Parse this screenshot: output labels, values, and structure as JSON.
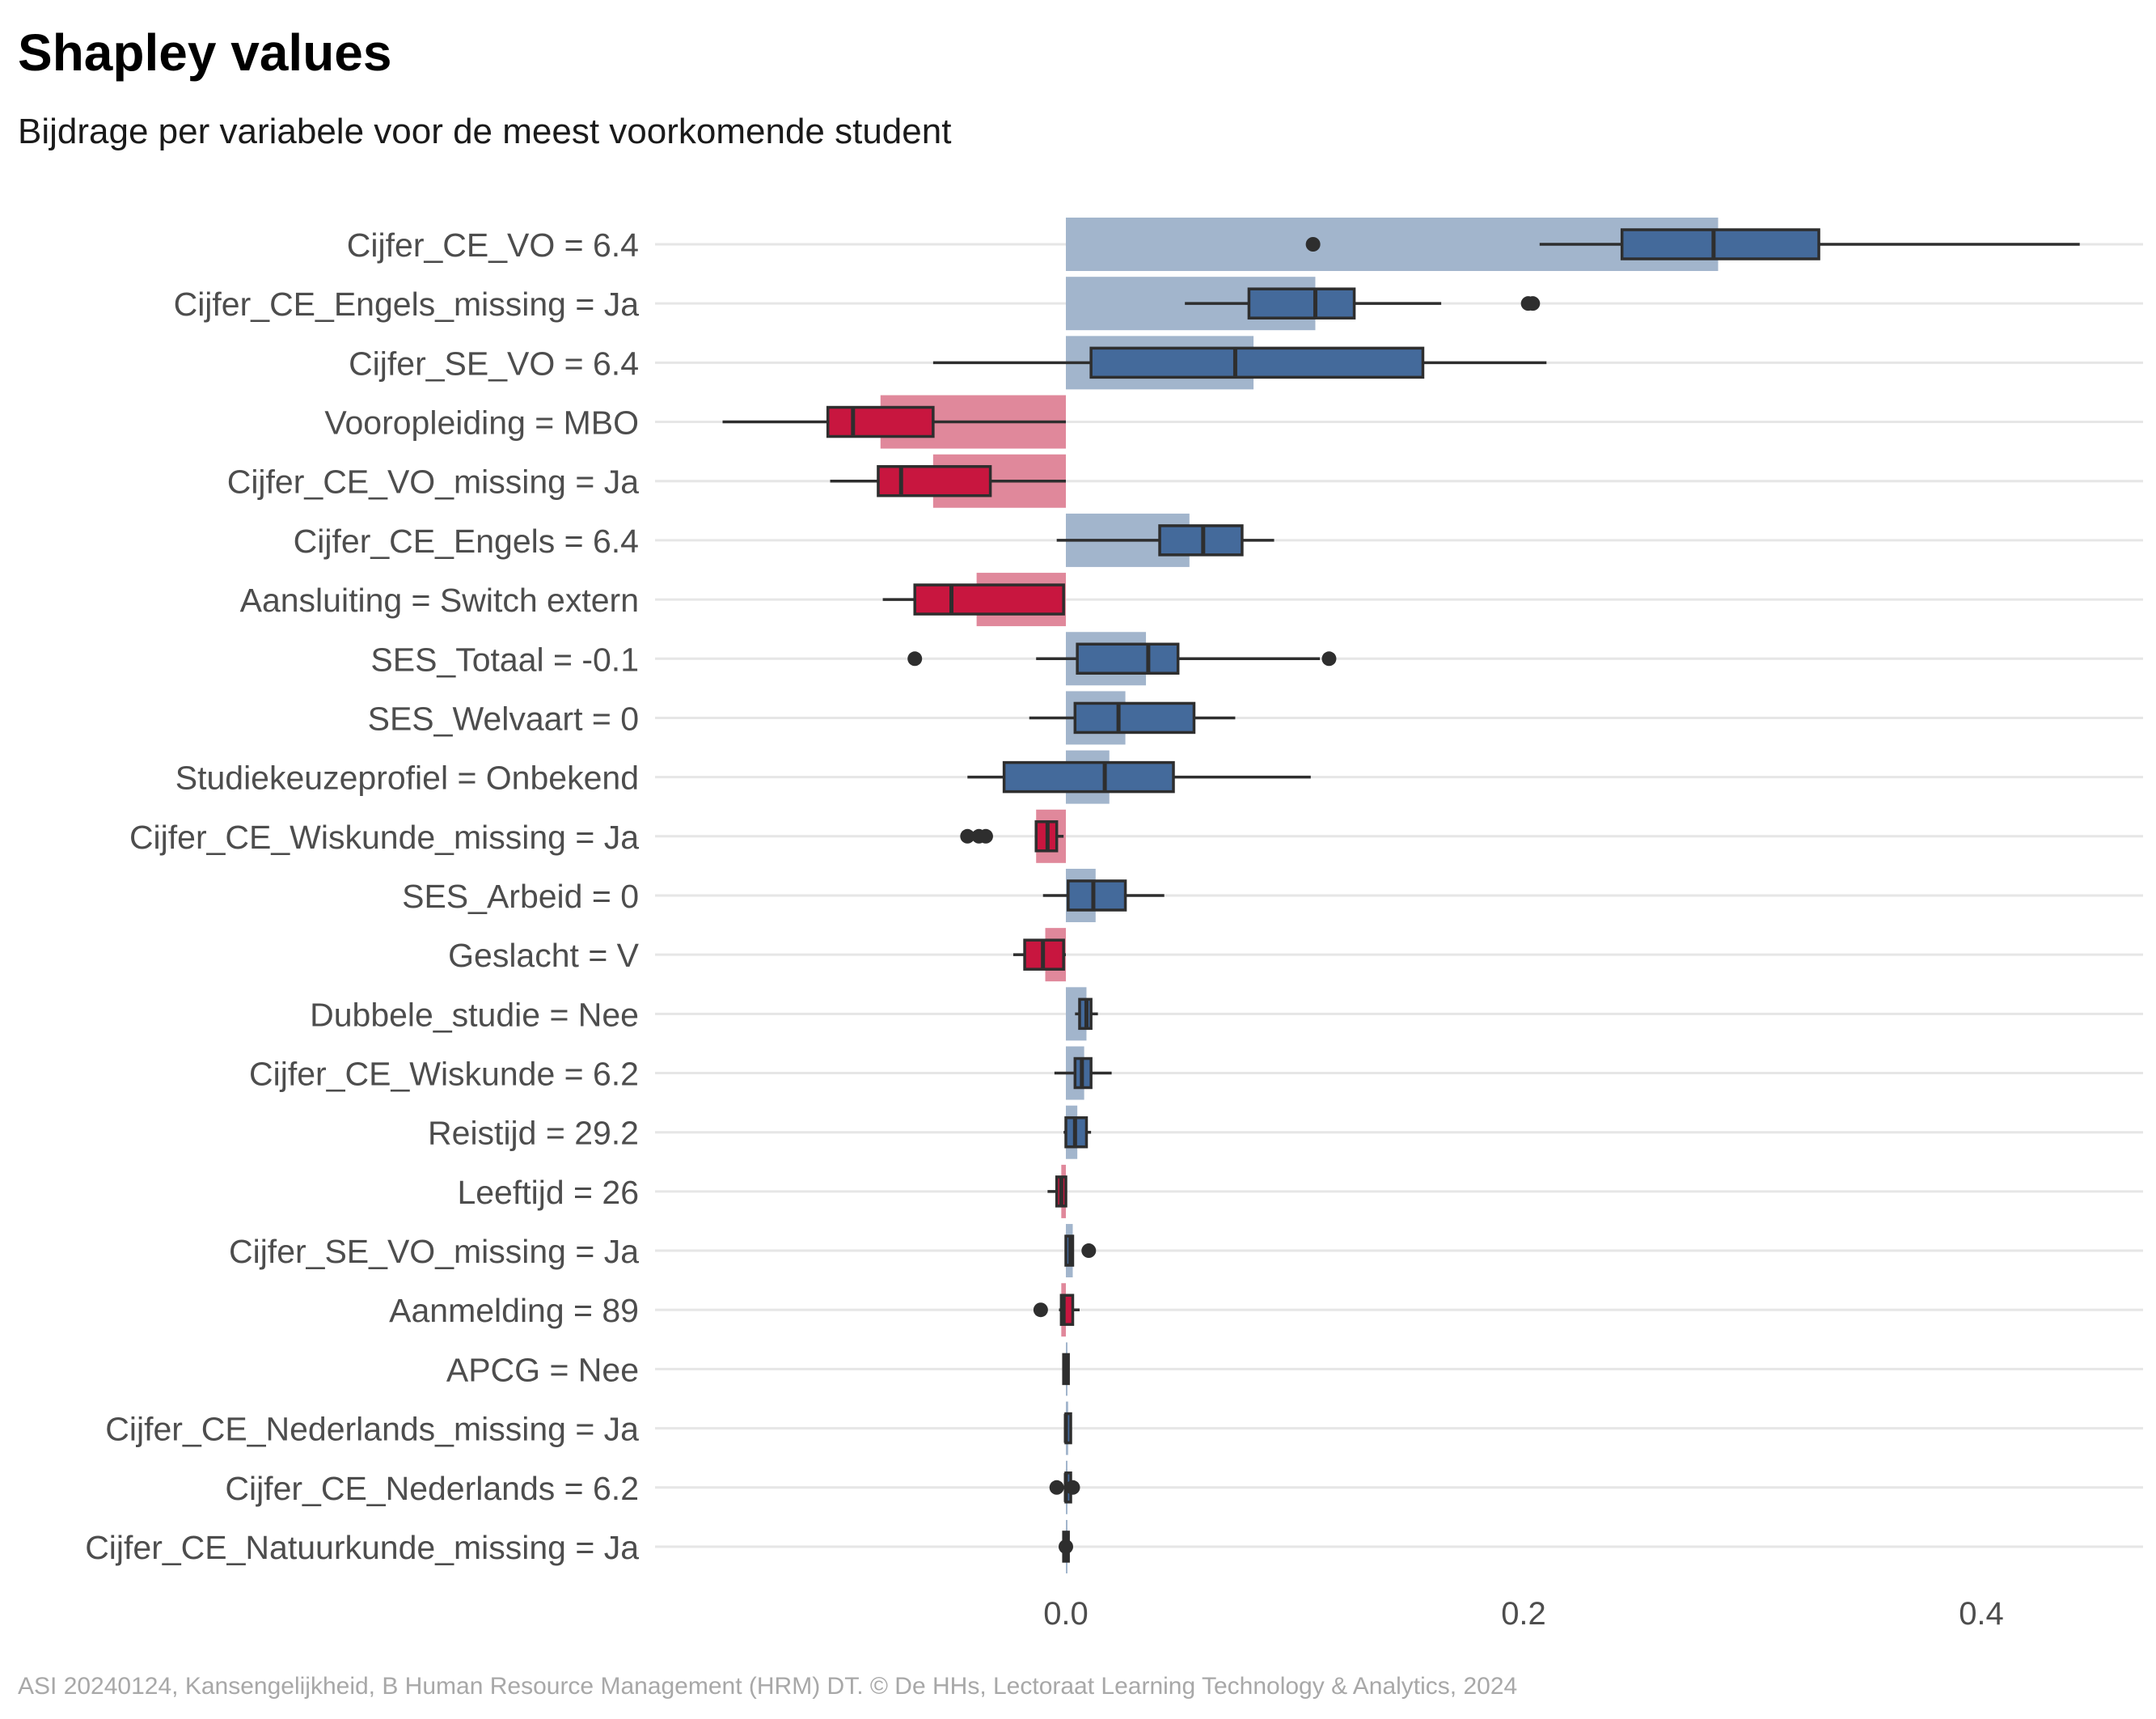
{
  "title": "Shapley values",
  "subtitle": "Bijdrage per variabele voor de meest voorkomende student",
  "caption": "ASI 20240124, Kansengelijkheid, B Human Resource Management (HRM) DT. © De HHs, Lectoraat Learning Technology & Analytics, 2024",
  "colors": {
    "positive_bar": "#a2b5cc",
    "positive_box": "#446a9b",
    "negative_bar": "#e0889b",
    "negative_box": "#c8163f",
    "outline": "#2e2e2e",
    "grid": "#e6e6e6",
    "label": "#4d4d4d"
  },
  "chart_data": {
    "type": "bar",
    "title": "Shapley values",
    "subtitle": "Bijdrage per variabele voor de meest voorkomende student",
    "xlabel": "",
    "ylabel": "",
    "xlim": [
      -0.18,
      0.47
    ],
    "x_ticks": [
      0.0,
      0.2,
      0.4
    ],
    "x_tick_labels": [
      "0.0",
      "0.2",
      "0.4"
    ],
    "grid": "horizontal",
    "series": [
      {
        "values": [
          0.285,
          0.109,
          0.082,
          -0.081,
          -0.058,
          0.054,
          -0.039,
          0.035,
          0.026,
          0.019,
          -0.013,
          0.013,
          -0.009,
          0.009,
          0.008,
          0.005,
          -0.002,
          0.003,
          -0.002,
          0.0,
          0.001,
          0.0,
          0.0
        ]
      }
    ],
    "categories": [
      "Cijfer_CE_VO = 6.4",
      "Cijfer_CE_Engels_missing = Ja",
      "Cijfer_SE_VO = 6.4",
      "Vooropleiding = MBO",
      "Cijfer_CE_VO_missing = Ja",
      "Cijfer_CE_Engels = 6.4",
      "Aansluiting = Switch extern",
      "SES_Totaal = -0.1",
      "SES_Welvaart = 0",
      "Studiekeuzeprofiel = Onbekend",
      "Cijfer_CE_Wiskunde_missing = Ja",
      "SES_Arbeid = 0",
      "Geslacht = V",
      "Dubbele_studie = Nee",
      "Cijfer_CE_Wiskunde = 6.2",
      "Reistijd = 29.2",
      "Leeftijd = 26",
      "Cijfer_SE_VO_missing = Ja",
      "Aanmelding = 89",
      "APCG = Nee",
      "Cijfer_CE_Nederlands_missing = Ja",
      "Cijfer_CE_Nederlands = 6.2",
      "Cijfer_CE_Natuurkunde_missing = Ja"
    ],
    "boxplots": [
      {
        "min": 0.207,
        "q1": 0.243,
        "median": 0.283,
        "q3": 0.329,
        "max": 0.443,
        "outliers": [
          0.108
        ]
      },
      {
        "min": 0.052,
        "q1": 0.08,
        "median": 0.109,
        "q3": 0.126,
        "max": 0.164,
        "outliers": [
          0.202,
          0.204
        ]
      },
      {
        "min": -0.058,
        "q1": 0.011,
        "median": 0.074,
        "q3": 0.156,
        "max": 0.21,
        "outliers": []
      },
      {
        "min": -0.15,
        "q1": -0.104,
        "median": -0.093,
        "q3": -0.058,
        "max": 0.0,
        "outliers": []
      },
      {
        "min": -0.103,
        "q1": -0.082,
        "median": -0.072,
        "q3": -0.033,
        "max": 0.0,
        "outliers": []
      },
      {
        "min": -0.004,
        "q1": 0.041,
        "median": 0.06,
        "q3": 0.077,
        "max": 0.091,
        "outliers": []
      },
      {
        "min": -0.08,
        "q1": -0.066,
        "median": -0.05,
        "q3": -0.001,
        "max": -0.001,
        "outliers": []
      },
      {
        "min": -0.013,
        "q1": 0.005,
        "median": 0.036,
        "q3": 0.049,
        "max": 0.111,
        "outliers": [
          -0.066,
          0.115
        ]
      },
      {
        "min": -0.016,
        "q1": 0.004,
        "median": 0.023,
        "q3": 0.056,
        "max": 0.074,
        "outliers": []
      },
      {
        "min": -0.043,
        "q1": -0.027,
        "median": 0.017,
        "q3": 0.047,
        "max": 0.107,
        "outliers": []
      },
      {
        "min": -0.013,
        "q1": -0.013,
        "median": -0.008,
        "q3": -0.004,
        "max": -0.001,
        "outliers": [
          -0.043,
          -0.038,
          -0.035
        ]
      },
      {
        "min": -0.01,
        "q1": 0.001,
        "median": 0.012,
        "q3": 0.026,
        "max": 0.043,
        "outliers": []
      },
      {
        "min": -0.023,
        "q1": -0.018,
        "median": -0.01,
        "q3": -0.001,
        "max": 0.0,
        "outliers": []
      },
      {
        "min": 0.004,
        "q1": 0.006,
        "median": 0.009,
        "q3": 0.011,
        "max": 0.014,
        "outliers": []
      },
      {
        "min": -0.005,
        "q1": 0.004,
        "median": 0.007,
        "q3": 0.011,
        "max": 0.02,
        "outliers": []
      },
      {
        "min": -0.001,
        "q1": 0.0,
        "median": 0.004,
        "q3": 0.009,
        "max": 0.011,
        "outliers": []
      },
      {
        "min": -0.008,
        "q1": -0.004,
        "median": -0.002,
        "q3": 0.0,
        "max": 0.0,
        "outliers": []
      },
      {
        "min": 0.0,
        "q1": 0.0,
        "median": 0.002,
        "q3": 0.003,
        "max": 0.003,
        "outliers": [
          0.01
        ]
      },
      {
        "min": -0.003,
        "q1": -0.002,
        "median": -0.001,
        "q3": 0.003,
        "max": 0.006,
        "outliers": [
          -0.011
        ]
      },
      {
        "min": -0.001,
        "q1": -0.001,
        "median": 0.0,
        "q3": 0.0,
        "max": 0.001,
        "outliers": []
      },
      {
        "min": 0.0,
        "q1": 0.0,
        "median": 0.0,
        "q3": 0.001,
        "max": 0.001,
        "outliers": []
      },
      {
        "min": -0.001,
        "q1": 0.0,
        "median": 0.0,
        "q3": 0.001,
        "max": 0.001,
        "outliers": [
          -0.004,
          0.003
        ]
      },
      {
        "min": -0.001,
        "q1": -0.001,
        "median": 0.0,
        "q3": 0.001,
        "max": 0.001,
        "outliers": [
          0.0
        ]
      }
    ]
  }
}
